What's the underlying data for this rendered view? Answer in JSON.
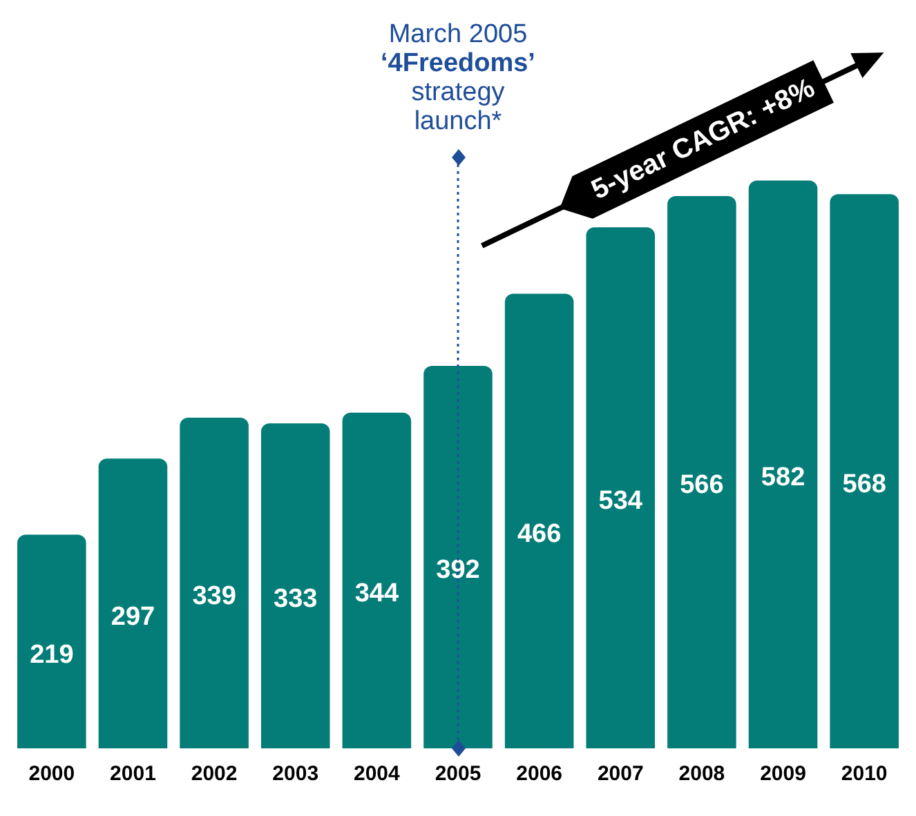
{
  "chart_data": {
    "type": "bar",
    "categories": [
      "2000",
      "2001",
      "2002",
      "2003",
      "2004",
      "2005",
      "2006",
      "2007",
      "2008",
      "2009",
      "2010"
    ],
    "values": [
      219,
      297,
      339,
      333,
      344,
      392,
      466,
      534,
      566,
      582,
      568
    ],
    "color": "#047d78",
    "data_labels": true,
    "grid": false,
    "legend": false,
    "ref_lines": [
      {
        "axis": "x",
        "value": "2005",
        "label": "March 2005\n‘4Freedoms’\nstrategy\nlaunch*",
        "color": "#1f4e99",
        "line_style": "dotted"
      }
    ],
    "annotations": [
      "5-year CAGR: +8%"
    ]
  }
}
